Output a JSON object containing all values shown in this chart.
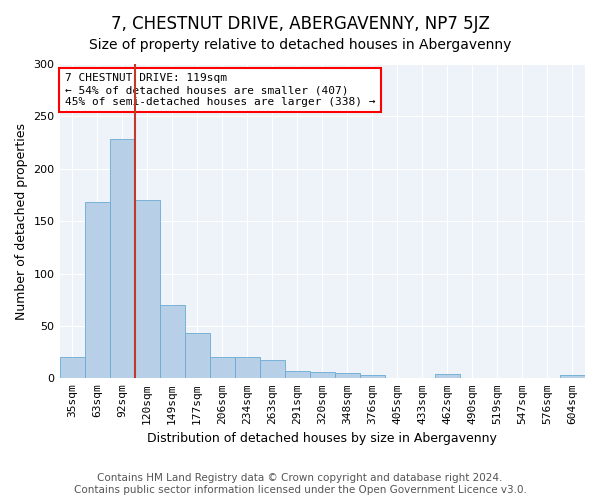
{
  "title": "7, CHESTNUT DRIVE, ABERGAVENNY, NP7 5JZ",
  "subtitle": "Size of property relative to detached houses in Abergavenny",
  "xlabel": "Distribution of detached houses by size in Abergavenny",
  "ylabel": "Number of detached properties",
  "categories": [
    "35sqm",
    "63sqm",
    "92sqm",
    "120sqm",
    "149sqm",
    "177sqm",
    "206sqm",
    "234sqm",
    "263sqm",
    "291sqm",
    "320sqm",
    "348sqm",
    "376sqm",
    "405sqm",
    "433sqm",
    "462sqm",
    "490sqm",
    "519sqm",
    "547sqm",
    "576sqm",
    "604sqm"
  ],
  "values": [
    20,
    168,
    228,
    170,
    70,
    43,
    20,
    20,
    17,
    7,
    6,
    5,
    3,
    0,
    0,
    4,
    0,
    0,
    0,
    0,
    3
  ],
  "bar_color": "#b8cfe8",
  "bar_edge_color": "#6aaad4",
  "vline_color": "#c0392b",
  "annotation_text": "7 CHESTNUT DRIVE: 119sqm\n← 54% of detached houses are smaller (407)\n45% of semi-detached houses are larger (338) →",
  "annotation_box_color": "white",
  "annotation_box_edge_color": "red",
  "ylim": [
    0,
    300
  ],
  "yticks": [
    0,
    50,
    100,
    150,
    200,
    250,
    300
  ],
  "footer": "Contains HM Land Registry data © Crown copyright and database right 2024.\nContains public sector information licensed under the Open Government Licence v3.0.",
  "title_fontsize": 12,
  "subtitle_fontsize": 10,
  "ylabel_fontsize": 9,
  "xlabel_fontsize": 9,
  "footer_fontsize": 7.5,
  "tick_fontsize": 8,
  "annot_fontsize": 8,
  "background_color": "#ffffff",
  "plot_background_color": "#eef2f9"
}
